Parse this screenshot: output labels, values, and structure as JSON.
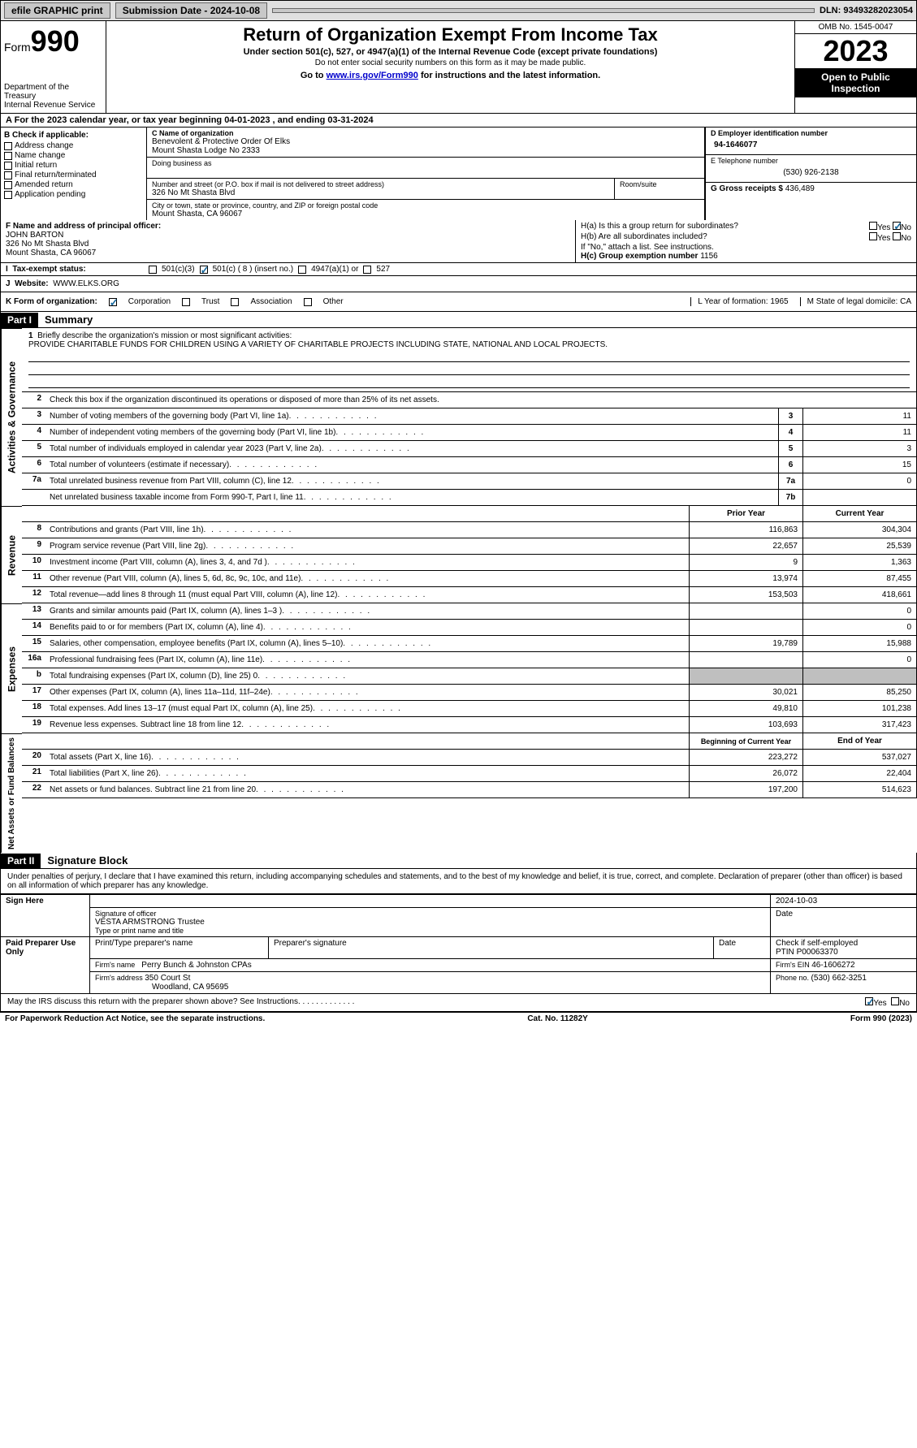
{
  "topbar": {
    "efile": "efile GRAPHIC print",
    "submission": "Submission Date - 2024-10-08",
    "dln": "DLN: 93493282023054"
  },
  "header": {
    "form_word": "Form",
    "form_num": "990",
    "dept": "Department of the Treasury",
    "irs": "Internal Revenue Service",
    "title": "Return of Organization Exempt From Income Tax",
    "subtitle": "Under section 501(c), 527, or 4947(a)(1) of the Internal Revenue Code (except private foundations)",
    "subtitle2": "Do not enter social security numbers on this form as it may be made public.",
    "goto_pre": "Go to ",
    "goto_link": "www.irs.gov/Form990",
    "goto_post": " for instructions and the latest information.",
    "omb": "OMB No. 1545-0047",
    "year": "2023",
    "open": "Open to Public Inspection"
  },
  "row_a": "For the 2023 calendar year, or tax year beginning 04-01-2023   , and ending 03-31-2024",
  "col_b": {
    "hdr": "B Check if applicable:",
    "items": [
      "Address change",
      "Name change",
      "Initial return",
      "Final return/terminated",
      "Amended return",
      "Application pending"
    ]
  },
  "col_c": {
    "name_lbl": "C Name of organization",
    "name1": "Benevolent & Protective Order Of Elks",
    "name2": "Mount Shasta Lodge No 2333",
    "dba_lbl": "Doing business as",
    "street_lbl": "Number and street (or P.O. box if mail is not delivered to street address)",
    "street": "326 No Mt Shasta Blvd",
    "room_lbl": "Room/suite",
    "city_lbl": "City or town, state or province, country, and ZIP or foreign postal code",
    "city": "Mount Shasta, CA  96067"
  },
  "col_d": {
    "ein_lbl": "D Employer identification number",
    "ein": "94-1646077",
    "tel_lbl": "E Telephone number",
    "tel": "(530) 926-2138",
    "gross_lbl": "G Gross receipts $",
    "gross": "436,489"
  },
  "row_f": {
    "lbl": "F  Name and address of principal officer:",
    "name": "JOHN BARTON",
    "addr1": "326 No Mt Shasta Blvd",
    "addr2": "Mount Shasta, CA  96067"
  },
  "row_h": {
    "a": "H(a)  Is this a group return for subordinates?",
    "b": "H(b)  Are all subordinates included?",
    "b_note": "If \"No,\" attach a list. See instructions.",
    "c_lbl": "H(c)  Group exemption number  ",
    "c_val": "1156",
    "yes": "Yes",
    "no": "No"
  },
  "row_i": {
    "lbl": "Tax-exempt status:",
    "c3": "501(c)(3)",
    "c_insert": "501(c) ( 8 ) (insert no.)",
    "a4947": "4947(a)(1) or",
    "s527": "527"
  },
  "row_j": {
    "lbl": "Website: ",
    "val": "WWW.ELKS.ORG"
  },
  "row_k": {
    "lbl": "K Form of organization:",
    "opts": [
      "Corporation",
      "Trust",
      "Association",
      "Other"
    ],
    "l": "L Year of formation: 1965",
    "m": "M State of legal domicile: CA"
  },
  "part1": {
    "tag": "Part I",
    "title": "Summary",
    "mission_lbl": "Briefly describe the organization's mission or most significant activities:",
    "mission": "PROVIDE CHARITABLE FUNDS FOR CHILDREN USING A VARIETY OF CHARITABLE PROJECTS INCLUDING STATE, NATIONAL AND LOCAL PROJECTS.",
    "line2": "Check this box     if the organization discontinued its operations or disposed of more than 25% of its net assets.",
    "gov_label": "Activities & Governance",
    "rev_label": "Revenue",
    "exp_label": "Expenses",
    "net_label": "Net Assets or Fund Balances",
    "prior_hdr": "Prior Year",
    "current_hdr": "Current Year",
    "boy_hdr": "Beginning of Current Year",
    "eoy_hdr": "End of Year",
    "lines_gov": [
      {
        "n": "3",
        "d": "Number of voting members of the governing body (Part VI, line 1a)",
        "k": "3",
        "v": "11"
      },
      {
        "n": "4",
        "d": "Number of independent voting members of the governing body (Part VI, line 1b)",
        "k": "4",
        "v": "11"
      },
      {
        "n": "5",
        "d": "Total number of individuals employed in calendar year 2023 (Part V, line 2a)",
        "k": "5",
        "v": "3"
      },
      {
        "n": "6",
        "d": "Total number of volunteers (estimate if necessary)",
        "k": "6",
        "v": "15"
      },
      {
        "n": "7a",
        "d": "Total unrelated business revenue from Part VIII, column (C), line 12",
        "k": "7a",
        "v": "0"
      },
      {
        "n": "",
        "d": "Net unrelated business taxable income from Form 990-T, Part I, line 11",
        "k": "7b",
        "v": ""
      }
    ],
    "lines_rev": [
      {
        "n": "8",
        "d": "Contributions and grants (Part VIII, line 1h)",
        "p": "116,863",
        "c": "304,304"
      },
      {
        "n": "9",
        "d": "Program service revenue (Part VIII, line 2g)",
        "p": "22,657",
        "c": "25,539"
      },
      {
        "n": "10",
        "d": "Investment income (Part VIII, column (A), lines 3, 4, and 7d )",
        "p": "9",
        "c": "1,363"
      },
      {
        "n": "11",
        "d": "Other revenue (Part VIII, column (A), lines 5, 6d, 8c, 9c, 10c, and 11e)",
        "p": "13,974",
        "c": "87,455"
      },
      {
        "n": "12",
        "d": "Total revenue—add lines 8 through 11 (must equal Part VIII, column (A), line 12)",
        "p": "153,503",
        "c": "418,661"
      }
    ],
    "lines_exp": [
      {
        "n": "13",
        "d": "Grants and similar amounts paid (Part IX, column (A), lines 1–3 )",
        "p": "",
        "c": "0"
      },
      {
        "n": "14",
        "d": "Benefits paid to or for members (Part IX, column (A), line 4)",
        "p": "",
        "c": "0"
      },
      {
        "n": "15",
        "d": "Salaries, other compensation, employee benefits (Part IX, column (A), lines 5–10)",
        "p": "19,789",
        "c": "15,988"
      },
      {
        "n": "16a",
        "d": "Professional fundraising fees (Part IX, column (A), line 11e)",
        "p": "",
        "c": "0"
      },
      {
        "n": "b",
        "d": "Total fundraising expenses (Part IX, column (D), line 25) 0",
        "p": "grey",
        "c": "grey"
      },
      {
        "n": "17",
        "d": "Other expenses (Part IX, column (A), lines 11a–11d, 11f–24e)",
        "p": "30,021",
        "c": "85,250"
      },
      {
        "n": "18",
        "d": "Total expenses. Add lines 13–17 (must equal Part IX, column (A), line 25)",
        "p": "49,810",
        "c": "101,238"
      },
      {
        "n": "19",
        "d": "Revenue less expenses. Subtract line 18 from line 12",
        "p": "103,693",
        "c": "317,423"
      }
    ],
    "lines_net": [
      {
        "n": "20",
        "d": "Total assets (Part X, line 16)",
        "p": "223,272",
        "c": "537,027"
      },
      {
        "n": "21",
        "d": "Total liabilities (Part X, line 26)",
        "p": "26,072",
        "c": "22,404"
      },
      {
        "n": "22",
        "d": "Net assets or fund balances. Subtract line 21 from line 20",
        "p": "197,200",
        "c": "514,623"
      }
    ]
  },
  "part2": {
    "tag": "Part II",
    "title": "Signature Block",
    "perjury": "Under penalties of perjury, I declare that I have examined this return, including accompanying schedules and statements, and to the best of my knowledge and belief, it is true, correct, and complete. Declaration of preparer (other than officer) is based on all information of which preparer has any knowledge.",
    "sign_here": "Sign Here",
    "sig_officer_lbl": "Signature of officer",
    "sig_name": "VESTA ARMSTRONG  Trustee",
    "sig_type_lbl": "Type or print name and title",
    "date_lbl": "Date",
    "date_val": "2024-10-03",
    "paid": "Paid Preparer Use Only",
    "prep_name_lbl": "Print/Type preparer's name",
    "prep_sig_lbl": "Preparer's signature",
    "check_self": "Check     if self-employed",
    "ptin_lbl": "PTIN",
    "ptin": "P00063370",
    "firm_name_lbl": "Firm's name  ",
    "firm_name": "Perry Bunch & Johnston CPAs",
    "firm_ein_lbl": "Firm's EIN  ",
    "firm_ein": "46-1606272",
    "firm_addr_lbl": "Firm's address ",
    "firm_addr1": "350 Court St",
    "firm_addr2": "Woodland, CA  95695",
    "phone_lbl": "Phone no. ",
    "phone": "(530) 662-3251",
    "discuss": "May the IRS discuss this return with the preparer shown above? See Instructions."
  },
  "footer": {
    "left": "For Paperwork Reduction Act Notice, see the separate instructions.",
    "mid": "Cat. No. 11282Y",
    "right": "Form 990 (2023)"
  }
}
